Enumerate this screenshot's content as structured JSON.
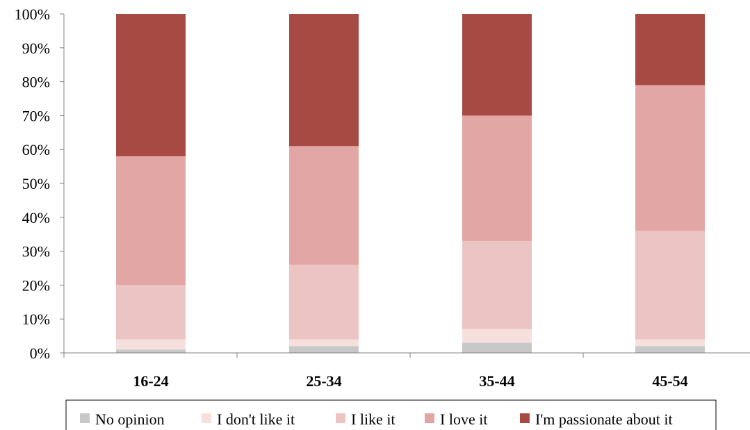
{
  "chart_data": {
    "type": "bar",
    "stacked": true,
    "percent_stacked": true,
    "categories": [
      "16-24",
      "25-34",
      "35-44",
      "45-54"
    ],
    "series": [
      {
        "name": "No opinion",
        "color": "#c8c8c8",
        "values": [
          1,
          2,
          3,
          2
        ]
      },
      {
        "name": "I don't like it",
        "color": "#f5e0de",
        "values": [
          3,
          2,
          4,
          2
        ]
      },
      {
        "name": "I like it",
        "color": "#edc4c4",
        "values": [
          16,
          22,
          26,
          32
        ]
      },
      {
        "name": "I love it",
        "color": "#e2a7a5",
        "values": [
          38,
          35,
          37,
          43
        ]
      },
      {
        "name": "I'm passionate about it",
        "color": "#a74a43",
        "values": [
          42,
          39,
          30,
          21
        ]
      }
    ],
    "yticks": [
      "0%",
      "10%",
      "20%",
      "30%",
      "40%",
      "50%",
      "60%",
      "70%",
      "80%",
      "90%",
      "100%"
    ],
    "ylim": [
      0,
      100
    ],
    "grid": false,
    "legend": "bottom"
  }
}
